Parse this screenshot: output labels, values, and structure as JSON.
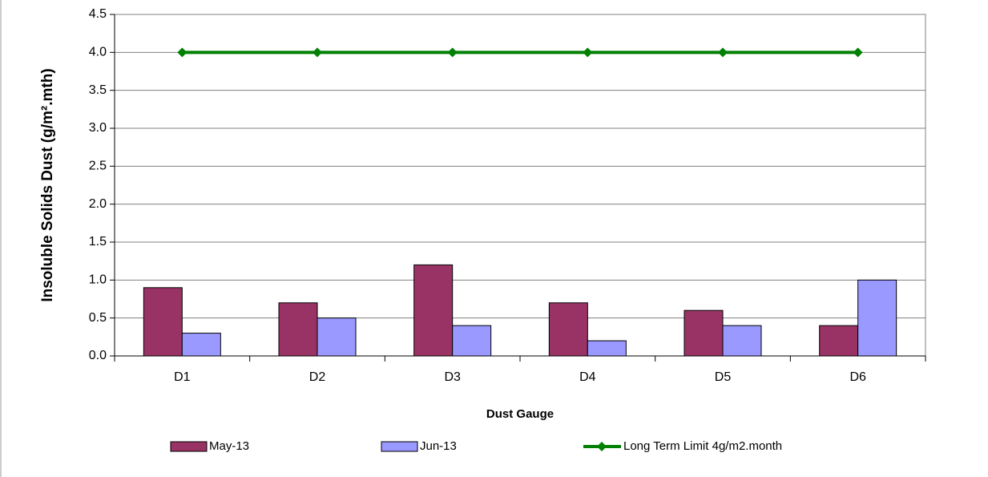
{
  "chart_data": {
    "type": "bar",
    "x_label": "Dust Gauge",
    "y_label": "Insoluble Solids Dust (g/m².mth)",
    "categories": [
      "D1",
      "D2",
      "D3",
      "D4",
      "D5",
      "D6"
    ],
    "series": [
      {
        "name": "May-13",
        "color": "#993366",
        "values": [
          0.9,
          0.7,
          1.2,
          0.7,
          0.6,
          0.4
        ]
      },
      {
        "name": "Jun-13",
        "color": "#9999ff",
        "values": [
          0.3,
          0.5,
          0.4,
          0.2,
          0.4,
          1.0
        ]
      },
      {
        "name": "Long Term Limit 4g/m2.month",
        "type": "line",
        "color": "#008000",
        "values": [
          4.0,
          4.0,
          4.0,
          4.0,
          4.0,
          4.0
        ]
      }
    ],
    "ylim": [
      0,
      4.5
    ],
    "yticks": [
      {
        "value": 0,
        "label": "0.0"
      },
      0.5,
      {
        "value": 1,
        "label": "1.0"
      },
      1.5,
      {
        "value": 2,
        "label": "2.0"
      },
      2.5,
      {
        "value": 3,
        "label": "3.0"
      },
      3.5,
      {
        "value": 4,
        "label": "4.0"
      },
      4.5
    ],
    "grid": true,
    "legend": "bottom"
  }
}
